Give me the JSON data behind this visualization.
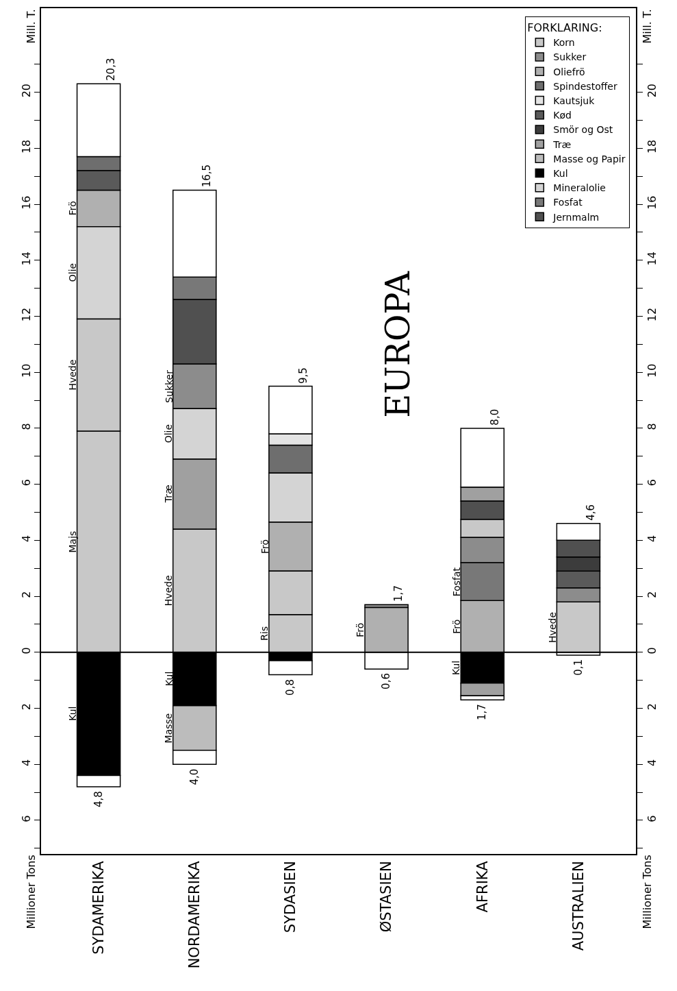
{
  "chart_data": {
    "type": "bar",
    "title": "EUROPA",
    "ylabel": "Millioner Tons",
    "y2label": "Millioner Tons",
    "legend_title": "FORKLARING:",
    "legend": "top right",
    "categories": [
      "SYDAMERIKA",
      "NORDAMERIKA",
      "SYDASIEN",
      "ØSTASIEN",
      "AFRIKA",
      "AUSTRALIEN"
    ],
    "ylim": [
      -7.2,
      23
    ],
    "yticks": [
      {
        "value": -7,
        "label": null
      },
      {
        "value": -6,
        "label": "6"
      },
      {
        "value": -5,
        "label": null
      },
      {
        "value": -4,
        "label": "4"
      },
      {
        "value": -3,
        "label": null
      },
      {
        "value": -2,
        "label": "2"
      },
      {
        "value": -1,
        "label": null
      },
      0,
      {
        "value": 1,
        "label": null
      },
      2,
      {
        "value": 3,
        "label": null
      },
      4,
      {
        "value": 5,
        "label": null
      },
      6,
      {
        "value": 7,
        "label": null
      },
      8,
      {
        "value": 9,
        "label": null
      },
      10,
      {
        "value": 11,
        "label": null
      },
      12,
      {
        "value": 13,
        "label": null
      },
      14,
      {
        "value": 15,
        "label": null
      },
      16,
      {
        "value": 17,
        "label": null
      },
      18,
      {
        "value": 19,
        "label": null
      },
      20,
      {
        "value": 21,
        "label": null
      }
    ],
    "y2lim": [
      -7.2,
      23
    ],
    "y2ticks": [
      {
        "value": -7,
        "label": null
      },
      {
        "value": -6,
        "label": "6"
      },
      {
        "value": -5,
        "label": null
      },
      {
        "value": -4,
        "label": "4"
      },
      {
        "value": -3,
        "label": null
      },
      {
        "value": -2,
        "label": "2"
      },
      {
        "value": -1,
        "label": null
      },
      0,
      {
        "value": 1,
        "label": null
      },
      2,
      {
        "value": 3,
        "label": null
      },
      4,
      {
        "value": 5,
        "label": null
      },
      6,
      {
        "value": 7,
        "label": null
      },
      8,
      {
        "value": 9,
        "label": null
      },
      10,
      {
        "value": 11,
        "label": null
      },
      12,
      {
        "value": 13,
        "label": null
      },
      14,
      {
        "value": 15,
        "label": null
      },
      16,
      {
        "value": 17,
        "label": null
      },
      18,
      {
        "value": 19,
        "label": null
      },
      20,
      {
        "value": 21,
        "label": null
      }
    ],
    "ref_lines": [
      {
        "axis": "y",
        "value": 0,
        "color": "#000000"
      }
    ],
    "annotations": [
      "Mill. T.",
      "Mill. T.",
      {
        "text": "20,3",
        "x": "SYDAMERIKA",
        "y": 20.3
      },
      {
        "text": "16,5",
        "x": "NORDAMERIKA",
        "y": 16.5
      },
      {
        "text": "9,5",
        "x": "SYDASIEN",
        "y": 9.5
      },
      {
        "text": "1,7",
        "x": "ØSTASIEN",
        "y": 1.7
      },
      {
        "text": "8,0",
        "x": "AFRIKA",
        "y": 8.0
      },
      {
        "text": "4,6",
        "x": "AUSTRALIEN",
        "y": 4.6
      },
      {
        "text": "4,8",
        "x": "SYDAMERIKA",
        "y": -4.8
      },
      {
        "text": "4,0",
        "x": "NORDAMERIKA",
        "y": -4.0
      },
      {
        "text": "0,8",
        "x": "SYDASIEN",
        "y": -0.8
      },
      {
        "text": "0,6",
        "x": "ØSTASIEN",
        "y": -0.6
      },
      {
        "text": "1,7",
        "x": "AFRIKA",
        "y": -1.7
      },
      {
        "text": "0,1",
        "x": "AUSTRALIEN",
        "y": -0.1
      }
    ],
    "series": [
      {
        "name": "Korn",
        "color": "#c8c8c8",
        "values": [
          7.9,
          4.4,
          1.35,
          null,
          0.65,
          1.8
        ],
        "base": [
          0,
          0,
          0,
          null,
          4.1,
          0
        ],
        "value_labels": [
          "Majs",
          "Hvede",
          "Ris",
          null,
          null,
          "Hvede"
        ]
      },
      {
        "name": "Sukker",
        "color": "#8c8c8c",
        "values": [
          null,
          1.6,
          null,
          0.1,
          0.9,
          0.5
        ],
        "base": [
          null,
          8.7,
          null,
          1.6,
          3.2,
          1.8
        ],
        "value_labels": [
          null,
          "Sukker",
          null,
          null,
          null,
          null
        ]
      },
      {
        "name": "Oliefrö",
        "color": "#b0b0b0",
        "values": [
          1.3,
          null,
          1.75,
          1.6,
          1.85,
          null
        ],
        "base": [
          15.2,
          null,
          2.9,
          0,
          0,
          null
        ],
        "value_labels": [
          "Frö",
          null,
          "Frö",
          "Frö",
          "Frö",
          null
        ]
      },
      {
        "name": "Spindestoffer",
        "color": "#6e6e6e",
        "values": [
          0.5,
          null,
          1.0,
          null,
          null,
          null
        ],
        "base": [
          17.2,
          null,
          6.4,
          null,
          null,
          null
        ]
      },
      {
        "name": "Kautsjuk",
        "color": "#e4e4e4",
        "values": [
          null,
          null,
          0.4,
          null,
          null,
          null
        ],
        "base": [
          null,
          null,
          7.4,
          null,
          null,
          null
        ]
      },
      {
        "name": "Kød",
        "color": "#5a5a5a",
        "values": [
          0.7,
          null,
          null,
          null,
          null,
          0.6
        ],
        "base": [
          16.5,
          null,
          null,
          null,
          null,
          2.3
        ]
      },
      {
        "name": "Smör og Ost",
        "color": "#3c3c3c",
        "values": [
          null,
          null,
          null,
          null,
          null,
          0.5
        ],
        "base": [
          null,
          null,
          null,
          null,
          null,
          2.9
        ]
      },
      {
        "name": "Træ",
        "color": "#a0a0a0",
        "values": [
          null,
          2.5,
          null,
          null,
          0.5,
          null
        ],
        "base": [
          null,
          4.4,
          null,
          null,
          5.4,
          null
        ],
        "value_labels": [
          null,
          "Træ",
          null,
          null,
          null,
          null
        ]
      },
      {
        "name": "Masse og Papir",
        "color": "#bcbcbc",
        "values": [
          null,
          -1.6,
          null,
          null,
          null,
          null
        ],
        "base": [
          null,
          -1.9,
          null,
          null,
          null,
          null
        ],
        "value_labels": [
          null,
          "Masse",
          null,
          null,
          null,
          null
        ]
      },
      {
        "name": "Kul",
        "color": "#000000",
        "values": [
          -4.4,
          -1.9,
          -0.3,
          null,
          -1.1,
          null
        ],
        "base": [
          0,
          0,
          0,
          null,
          0,
          null
        ],
        "value_labels": [
          "Kul",
          "Kul",
          null,
          null,
          "Kul",
          null
        ]
      },
      {
        "name": "Mineralolie",
        "color": "#d4d4d4",
        "values": [
          3.3,
          1.8,
          1.75,
          null,
          null,
          null
        ],
        "base": [
          11.9,
          6.9,
          4.65,
          null,
          null,
          null
        ],
        "value_labels": [
          "Olie",
          "Olie",
          null,
          null,
          null,
          null
        ]
      },
      {
        "name": "Fosfat",
        "color": "#787878",
        "values": [
          null,
          0.8,
          null,
          null,
          1.35,
          null
        ],
        "base": [
          null,
          12.6,
          null,
          null,
          1.85,
          null
        ],
        "value_labels": [
          null,
          null,
          null,
          null,
          "Fosfat",
          null
        ]
      },
      {
        "name": "Jernmalm",
        "color": "#505050",
        "values": [
          null,
          2.3,
          null,
          null,
          0.65,
          0.6
        ],
        "base": [
          null,
          10.3,
          null,
          null,
          4.75,
          3.4
        ]
      },
      {
        "color": "#c8c8c8",
        "values": [
          4.0,
          null,
          1.55,
          null,
          null,
          null
        ],
        "base": [
          7.9,
          null,
          1.35,
          null,
          null,
          null
        ],
        "value_labels": [
          "Hvede",
          null,
          null,
          null,
          null,
          null
        ]
      },
      {
        "color": "#a0a0a0",
        "values": [
          null,
          null,
          null,
          null,
          -0.45,
          null
        ],
        "base": [
          null,
          null,
          null,
          null,
          -1.1,
          null
        ]
      },
      {
        "color": "#ffffff",
        "values": [
          2.6,
          3.1,
          1.7,
          null,
          2.1,
          0.6
        ],
        "base": [
          17.7,
          13.4,
          7.8,
          null,
          5.9,
          4.0
        ]
      },
      {
        "color": "#ffffff",
        "values": [
          -0.4,
          -0.5,
          -0.5,
          -0.6,
          -0.15,
          -0.1
        ],
        "base": [
          -4.4,
          -3.5,
          -0.3,
          0,
          -1.55,
          0
        ]
      }
    ]
  }
}
